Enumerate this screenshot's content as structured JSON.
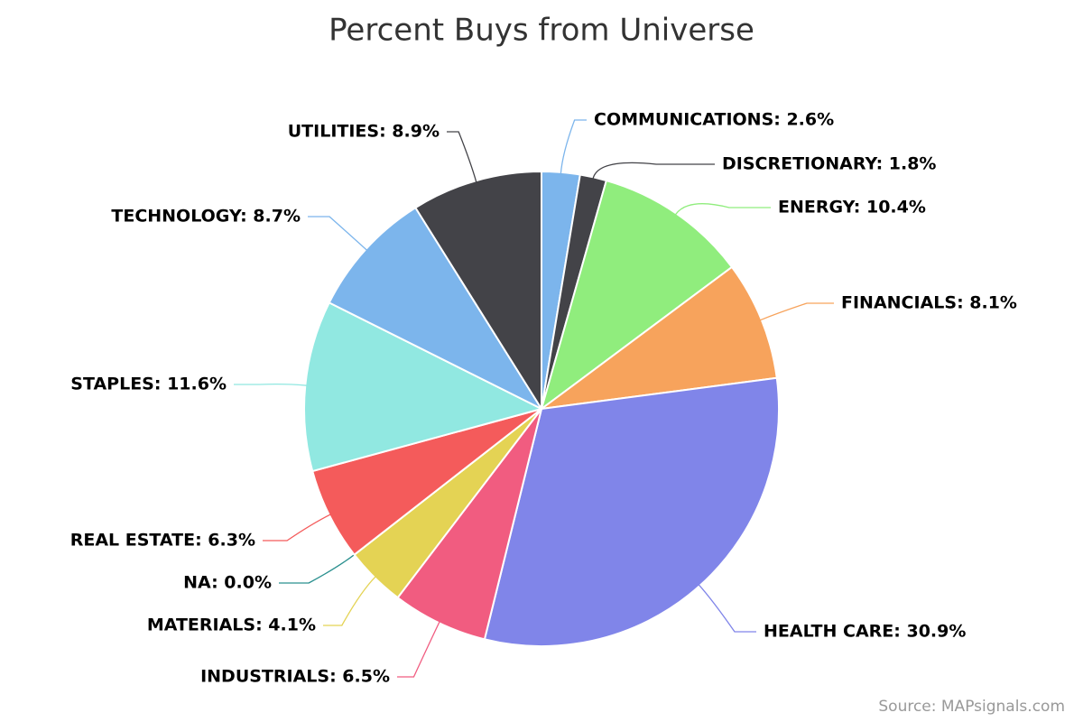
{
  "chart_data": {
    "type": "pie",
    "title": "Percent Buys from Universe",
    "credit": "Source: MAPsignals.com",
    "values": [
      2.6,
      1.8,
      10.4,
      8.1,
      30.9,
      6.5,
      4.1,
      0.0,
      6.3,
      11.6,
      8.7,
      8.9
    ],
    "value_labels": [
      "COMMUNICATIONS: 2.6%",
      "DISCRETIONARY: 1.8%",
      "ENERGY: 10.4%",
      "FINANCIALS: 8.1%",
      "HEALTH CARE: 30.9%",
      "INDUSTRIALS: 6.5%",
      "MATERIALS: 4.1%",
      "NA: 0.0%",
      "REAL ESTATE: 6.3%",
      "STAPLES: 11.6%",
      "TECHNOLOGY: 8.7%",
      "UTILITIES: 8.9%"
    ],
    "colors": [
      "#7cb5ec",
      "#434348",
      "#90ed7d",
      "#f7a35c",
      "#8085e9",
      "#f15c80",
      "#e4d354",
      "#2b908f",
      "#f45b5b",
      "#91e8e1",
      "#7cb5ec",
      "#434348"
    ]
  }
}
